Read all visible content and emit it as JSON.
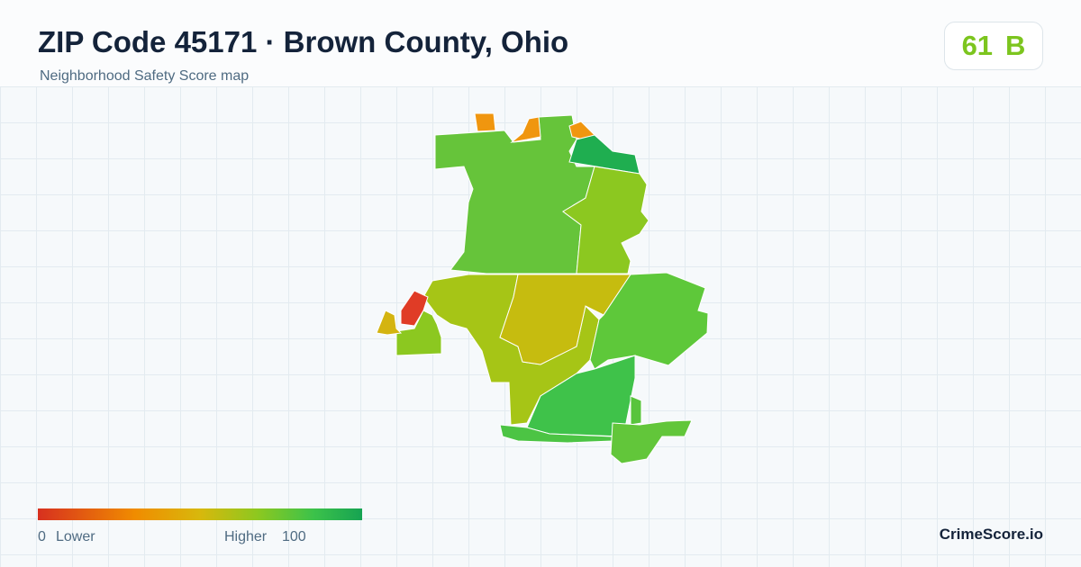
{
  "header": {
    "title": "ZIP Code 45171 · Brown County, Ohio",
    "subtitle": "Neighborhood Safety Score map"
  },
  "score": {
    "value": 61,
    "grade": "B"
  },
  "legend": {
    "min": 0,
    "min_label": "Lower",
    "max_label": "Higher",
    "max": 100
  },
  "brand": "CrimeScore.io"
}
